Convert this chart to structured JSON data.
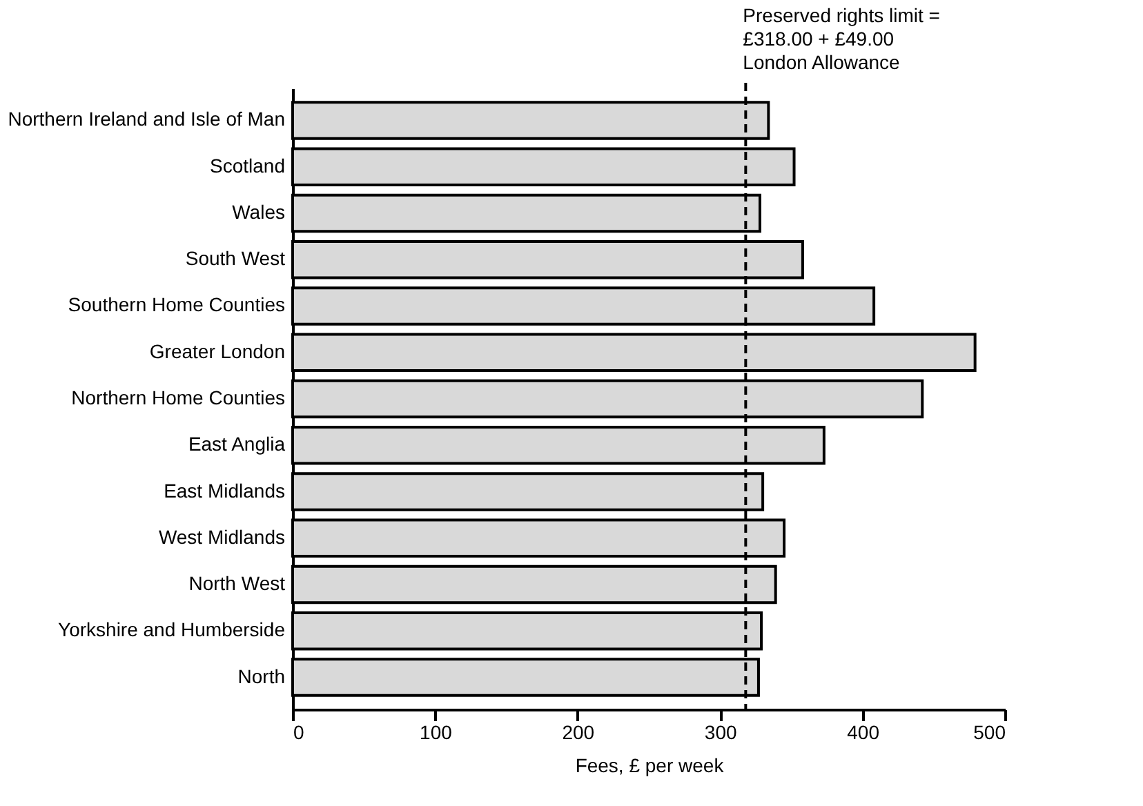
{
  "chart_data": {
    "type": "bar",
    "orientation": "horizontal",
    "xlabel": "Fees, £ per week",
    "categories": [
      "Northern Ireland and Isle of Man",
      "Scotland",
      "Wales",
      "South West",
      "Southern Home Counties",
      "Greater London",
      "Northern Home Counties",
      "East Anglia",
      "East Midlands",
      "West Midlands",
      "North West",
      "Yorkshire and Humberside",
      "North"
    ],
    "values": [
      334,
      352,
      328,
      358,
      408,
      479,
      442,
      373,
      330,
      345,
      339,
      329,
      327
    ],
    "color": "#d9d9d9",
    "xlim": [
      0,
      500
    ],
    "xticks": [
      0,
      100,
      200,
      300,
      400,
      500
    ],
    "grid": false,
    "ref_lines": [
      {
        "axis": "x",
        "value": 318,
        "label": "Preserved rights limit =\n£318.00 + £49.00\nLondon Allowance",
        "color": "#000000",
        "line_style": "dashed"
      }
    ]
  }
}
